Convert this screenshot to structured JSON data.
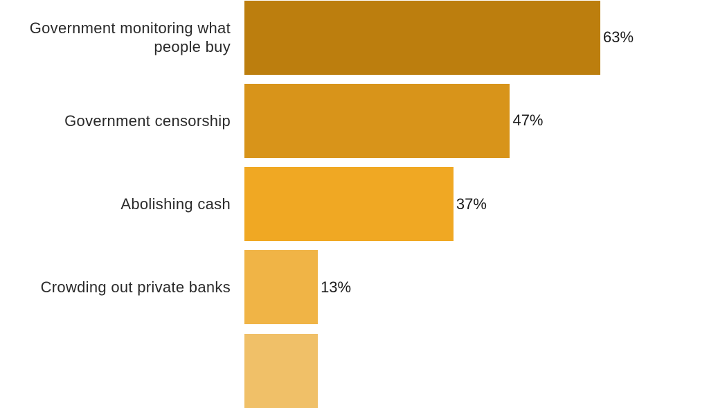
{
  "chart_data": {
    "type": "hbar",
    "categories": [
      "Government monitoring what people buy",
      "Government censorship",
      "Abolishing cash",
      "Crowding out private banks",
      null
    ],
    "values": [
      63,
      47,
      37,
      13,
      13
    ],
    "value_labels": [
      "63%",
      "47%",
      "37%",
      "13%",
      null
    ],
    "colors": [
      "#bc7e0e",
      "#d8941a",
      "#f0a823",
      "#f0b446",
      "#f0c068"
    ]
  }
}
